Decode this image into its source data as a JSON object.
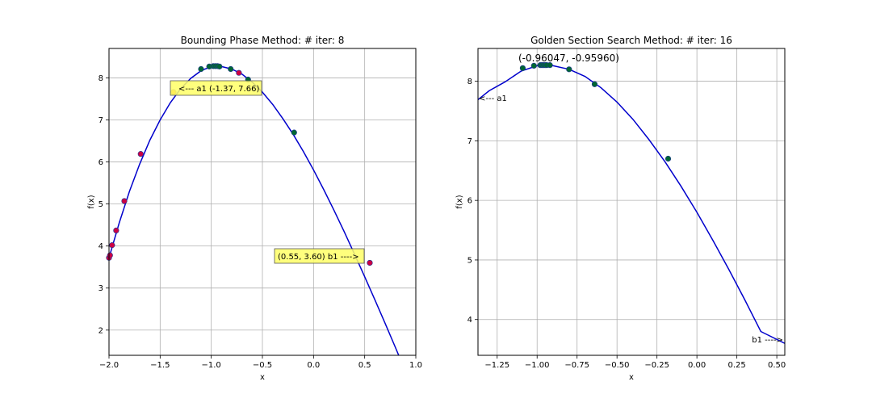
{
  "chart_data": [
    {
      "type": "line",
      "title": "Bounding Phase Method: # iter: 8",
      "xlabel": "x",
      "ylabel": "f(x)",
      "xlim": [
        -2.0,
        1.0
      ],
      "ylim": [
        1.4,
        8.7
      ],
      "grid": true,
      "xticks": [
        -2.0,
        -1.5,
        -1.0,
        -0.5,
        0.0,
        0.5,
        1.0
      ],
      "xtick_labels": [
        "−2.0",
        "−1.5",
        "−1.0",
        "−0.5",
        "0.0",
        "0.5",
        "1.0"
      ],
      "yticks": [
        2,
        3,
        4,
        5,
        6,
        7,
        8
      ],
      "ytick_labels": [
        "2",
        "3",
        "4",
        "5",
        "6",
        "7",
        "8"
      ],
      "curve_color": "#0000cc",
      "curve": [
        [
          -2.0,
          3.72
        ],
        [
          -1.9,
          4.55
        ],
        [
          -1.8,
          5.3
        ],
        [
          -1.7,
          5.95
        ],
        [
          -1.6,
          6.52
        ],
        [
          -1.5,
          7.0
        ],
        [
          -1.4,
          7.41
        ],
        [
          -1.3,
          7.74
        ],
        [
          -1.2,
          7.99
        ],
        [
          -1.1,
          8.17
        ],
        [
          -1.0,
          8.27
        ],
        [
          -0.96,
          8.28
        ],
        [
          -0.9,
          8.27
        ],
        [
          -0.8,
          8.21
        ],
        [
          -0.7,
          8.09
        ],
        [
          -0.6,
          7.9
        ],
        [
          -0.5,
          7.66
        ],
        [
          -0.4,
          7.37
        ],
        [
          -0.3,
          7.03
        ],
        [
          -0.2,
          6.66
        ],
        [
          -0.1,
          6.25
        ],
        [
          0.0,
          5.81
        ],
        [
          0.1,
          5.34
        ],
        [
          0.2,
          4.85
        ],
        [
          0.3,
          4.34
        ],
        [
          0.4,
          3.81
        ],
        [
          0.5,
          3.27
        ],
        [
          0.6,
          2.72
        ],
        [
          0.7,
          2.16
        ],
        [
          0.8,
          1.59
        ],
        [
          0.9,
          1.01
        ],
        [
          1.0,
          0.43
        ]
      ],
      "points": [
        {
          "x": -2.0,
          "y": 3.72,
          "color": "#cc0044"
        },
        {
          "x": -1.99,
          "y": 3.78,
          "color": "#cc0044"
        },
        {
          "x": -1.97,
          "y": 4.02,
          "color": "#cc0044"
        },
        {
          "x": -1.93,
          "y": 4.37,
          "color": "#cc0044"
        },
        {
          "x": -1.85,
          "y": 5.07,
          "color": "#cc0044"
        },
        {
          "x": -1.69,
          "y": 6.19,
          "color": "#cc0044"
        },
        {
          "x": -1.37,
          "y": 7.66,
          "color": "#ff8c00"
        },
        {
          "x": -0.73,
          "y": 8.12,
          "color": "#cc0044"
        },
        {
          "x": -1.1,
          "y": 8.21,
          "color": "#006633"
        },
        {
          "x": -1.02,
          "y": 8.27,
          "color": "#006633"
        },
        {
          "x": -0.98,
          "y": 8.28,
          "color": "#006633"
        },
        {
          "x": -0.96,
          "y": 8.28,
          "color": "#006633"
        },
        {
          "x": -0.94,
          "y": 8.28,
          "color": "#006633"
        },
        {
          "x": -0.92,
          "y": 8.27,
          "color": "#006633"
        },
        {
          "x": -0.81,
          "y": 8.21,
          "color": "#006633"
        },
        {
          "x": -0.64,
          "y": 7.96,
          "color": "#006633"
        },
        {
          "x": -0.19,
          "y": 6.7,
          "color": "#006633"
        },
        {
          "x": 0.55,
          "y": 3.6,
          "color": "#cc0044"
        }
      ],
      "annotations": [
        {
          "text": "<--- a1 (-1.37, 7.66)",
          "box_color": "#ffff66"
        },
        {
          "text": "(0.55, 3.60) b1 ---->",
          "box_color": "#ffff66"
        }
      ]
    },
    {
      "type": "line",
      "title": "Golden Section Search Method: # iter: 16",
      "xlabel": "x",
      "ylabel": "f(x)",
      "xlim": [
        -1.37,
        0.55
      ],
      "ylim": [
        3.4,
        8.55
      ],
      "grid": true,
      "xticks": [
        -1.25,
        -1.0,
        -0.75,
        -0.5,
        -0.25,
        0.0,
        0.25,
        0.5
      ],
      "xtick_labels": [
        "−1.25",
        "−1.00",
        "−0.75",
        "−0.50",
        "−0.25",
        "0.00",
        "0.25",
        "0.50"
      ],
      "yticks": [
        4,
        5,
        6,
        7,
        8
      ],
      "ytick_labels": [
        "4",
        "5",
        "6",
        "7",
        "8"
      ],
      "curve_color": "#0000cc",
      "curve": [
        [
          -1.37,
          7.69
        ],
        [
          -1.3,
          7.84
        ],
        [
          -1.2,
          7.99
        ],
        [
          -1.1,
          8.17
        ],
        [
          -1.0,
          8.26
        ],
        [
          -0.96,
          8.27
        ],
        [
          -0.9,
          8.26
        ],
        [
          -0.8,
          8.2
        ],
        [
          -0.7,
          8.08
        ],
        [
          -0.6,
          7.89
        ],
        [
          -0.5,
          7.65
        ],
        [
          -0.4,
          7.36
        ],
        [
          -0.3,
          7.02
        ],
        [
          -0.2,
          6.65
        ],
        [
          -0.1,
          6.24
        ],
        [
          0.0,
          5.8
        ],
        [
          0.1,
          5.33
        ],
        [
          0.2,
          4.84
        ],
        [
          0.3,
          4.33
        ],
        [
          0.4,
          3.8
        ],
        [
          0.55,
          3.6
        ]
      ],
      "points": [
        {
          "x": -1.09,
          "y": 8.22,
          "color": "#006633"
        },
        {
          "x": -1.02,
          "y": 8.26,
          "color": "#006633"
        },
        {
          "x": -0.98,
          "y": 8.27,
          "color": "#006633"
        },
        {
          "x": -0.97,
          "y": 8.27,
          "color": "#006633"
        },
        {
          "x": -0.96,
          "y": 8.27,
          "color": "#006633"
        },
        {
          "x": -0.95,
          "y": 8.27,
          "color": "#006633"
        },
        {
          "x": -0.94,
          "y": 8.27,
          "color": "#006633"
        },
        {
          "x": -0.92,
          "y": 8.27,
          "color": "#006633"
        },
        {
          "x": -0.8,
          "y": 8.2,
          "color": "#006633"
        },
        {
          "x": -0.64,
          "y": 7.95,
          "color": "#006633"
        },
        {
          "x": -0.18,
          "y": 6.7,
          "color": "#006633"
        }
      ],
      "annotations": [
        {
          "text": "(-0.96047, -0.95960)"
        },
        {
          "text": "<--- a1"
        },
        {
          "text": "b1 ---->"
        }
      ]
    }
  ]
}
